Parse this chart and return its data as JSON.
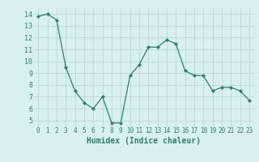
{
  "x": [
    0,
    1,
    2,
    3,
    4,
    5,
    6,
    7,
    8,
    9,
    10,
    11,
    12,
    13,
    14,
    15,
    16,
    17,
    18,
    19,
    20,
    21,
    22,
    23
  ],
  "y": [
    13.8,
    14.0,
    13.5,
    9.5,
    7.5,
    6.5,
    6.0,
    7.0,
    4.8,
    4.8,
    8.8,
    9.7,
    11.2,
    11.2,
    11.8,
    11.5,
    9.2,
    8.8,
    8.8,
    7.5,
    7.8,
    7.8,
    7.5,
    6.7
  ],
  "xlabel": "Humidex (Indice chaleur)",
  "ylim": [
    4.5,
    14.5
  ],
  "yticks": [
    5,
    6,
    7,
    8,
    9,
    10,
    11,
    12,
    13,
    14
  ],
  "xticks": [
    0,
    1,
    2,
    3,
    4,
    5,
    6,
    7,
    8,
    9,
    10,
    11,
    12,
    13,
    14,
    15,
    16,
    17,
    18,
    19,
    20,
    21,
    22,
    23
  ],
  "line_color": "#2e7d6e",
  "marker_color": "#2e7d6e",
  "bg_color": "#d8f0f0",
  "grid_color": "#b8d8d8",
  "tick_label_color": "#2e7d6e",
  "xlabel_color": "#2e7d6e",
  "font_family": "monospace",
  "tick_fontsize": 5.5,
  "xlabel_fontsize": 7
}
